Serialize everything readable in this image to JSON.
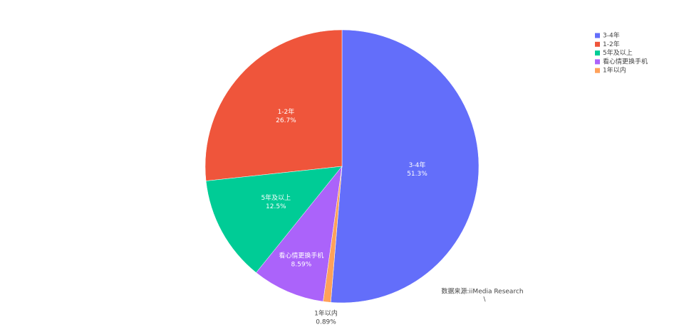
{
  "chart_data": {
    "type": "pie",
    "categories": [
      "3-4年",
      "1-2年",
      "5年及以上",
      "看心情更换手机",
      "1年以内"
    ],
    "values": [
      51.3,
      26.7,
      12.5,
      8.59,
      0.89
    ],
    "value_labels": [
      "51.3%",
      "26.7%",
      "12.5%",
      "8.59%",
      "0.89%"
    ],
    "colors": [
      "#636efa",
      "#ef553b",
      "#00cc96",
      "#ab63fa",
      "#ffa15a"
    ],
    "legend": "top-right",
    "annotations": [
      "数据来源:iiMedia Research",
      "\\"
    ]
  }
}
